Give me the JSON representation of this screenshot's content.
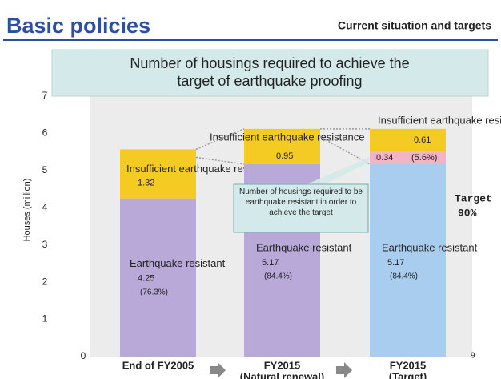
{
  "header": {
    "title": "Basic policies",
    "subtitle": "Current situation and targets"
  },
  "chart_data": {
    "type": "bar",
    "stacked": true,
    "title": "Number of housings required to achieve the target of earthquake proofing",
    "y_label": "Houses (million)",
    "categories": [
      "End of FY2005",
      "FY2015",
      "FY2015"
    ],
    "category_sublabels": [
      null,
      "(Natural renewal)",
      "(Target)"
    ],
    "series": [
      {
        "name": "Earthquake resistant",
        "colors": [
          "#b9a9d8",
          "#b9a9d8",
          "#a9cdef"
        ],
        "values": [
          4.25,
          5.17,
          5.17
        ],
        "share_labels": [
          "(76.3%)",
          "(84.4%)",
          "(84.4%)"
        ]
      },
      {
        "name": "Insufficient earthquake resistance",
        "color": "#f4cb22",
        "values": [
          1.32,
          0.95,
          0.61
        ]
      },
      {
        "color": "#f2b3c6",
        "values": [
          null,
          null,
          0.34
        ],
        "share_labels": [
          null,
          null,
          "(5.6%)"
        ]
      }
    ],
    "ylim": [
      0,
      7
    ],
    "yticks": [
      0,
      1,
      2,
      3,
      4,
      5,
      6,
      7
    ],
    "callout": "Number of housings required to be earthquake resistant in order to achieve the target",
    "target_label": "Target",
    "target_value": "90%",
    "corner_note": "9"
  }
}
